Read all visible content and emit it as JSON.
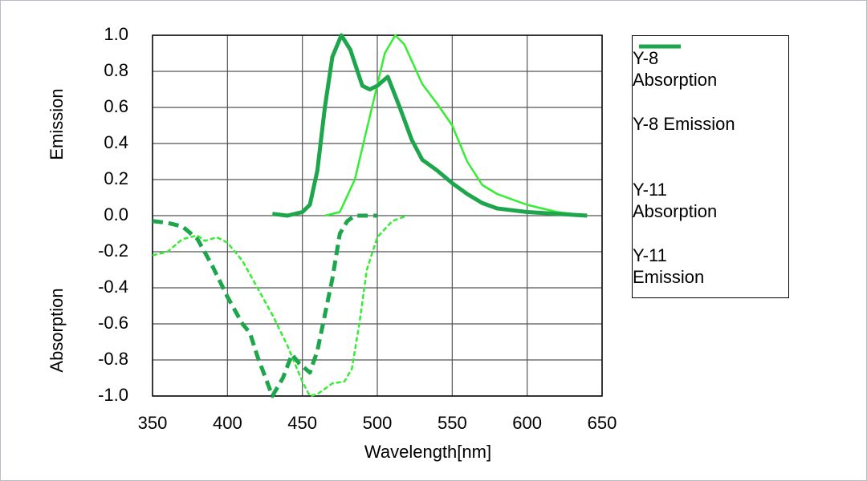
{
  "chart_data": {
    "type": "line",
    "x_label": "Wavelength[nm]",
    "y_label_upper": "Emission",
    "y_label_lower": "Absorption",
    "xlim": [
      350,
      650
    ],
    "xticks": [
      350,
      400,
      450,
      500,
      550,
      600,
      650
    ],
    "ylim": [
      -1,
      1
    ],
    "yticks": [
      {
        "value": -1,
        "label": "-1.0"
      },
      -0.8,
      -0.6,
      -0.4,
      -0.2,
      {
        "value": 0,
        "label": "0.0"
      },
      0.2,
      0.4,
      0.6,
      0.8,
      {
        "value": 1,
        "label": "1.0"
      }
    ],
    "grid": true,
    "legend": "right",
    "series": [
      {
        "name": "Y-8 Absorption",
        "color": "#33ee33",
        "linestyle": "dashed",
        "thick": false,
        "x": [
          350,
          360,
          370,
          380,
          385,
          393,
          400,
          410,
          420,
          430,
          440,
          450,
          455,
          460,
          470,
          478,
          483,
          488,
          493,
          500,
          510,
          520
        ],
        "values": [
          -0.22,
          -0.2,
          -0.13,
          -0.11,
          -0.14,
          -0.12,
          -0.15,
          -0.25,
          -0.4,
          -0.55,
          -0.72,
          -0.92,
          -1.0,
          -0.99,
          -0.93,
          -0.92,
          -0.85,
          -0.6,
          -0.3,
          -0.12,
          -0.03,
          0.0
        ]
      },
      {
        "name": "Y-8 Emission",
        "color": "#33ee33",
        "linestyle": "solid",
        "thick": false,
        "x": [
          465,
          475,
          485,
          495,
          505,
          512,
          518,
          530,
          540,
          550,
          560,
          570,
          580,
          600,
          620,
          640
        ],
        "values": [
          0.0,
          0.02,
          0.2,
          0.55,
          0.9,
          1.0,
          0.95,
          0.73,
          0.62,
          0.5,
          0.3,
          0.17,
          0.12,
          0.06,
          0.02,
          0.0
        ]
      },
      {
        "name": "Y-11 Absorption",
        "color": "#1ea64c",
        "linestyle": "dashed",
        "thick": true,
        "x": [
          350,
          360,
          370,
          380,
          390,
          400,
          410,
          415,
          420,
          430,
          437,
          443,
          448,
          455,
          460,
          470,
          475,
          480,
          485,
          500
        ],
        "values": [
          -0.03,
          -0.04,
          -0.06,
          -0.13,
          -0.28,
          -0.45,
          -0.6,
          -0.65,
          -0.78,
          -1.0,
          -0.9,
          -0.77,
          -0.82,
          -0.87,
          -0.75,
          -0.35,
          -0.1,
          -0.03,
          0.0,
          0.0
        ]
      },
      {
        "name": "Y-11 Emission",
        "color": "#1ea64c",
        "linestyle": "solid",
        "thick": true,
        "x": [
          430,
          440,
          450,
          455,
          460,
          465,
          470,
          476,
          482,
          490,
          495,
          500,
          507,
          515,
          523,
          530,
          540,
          550,
          560,
          570,
          580,
          600,
          620,
          640
        ],
        "values": [
          0.01,
          0.0,
          0.02,
          0.06,
          0.25,
          0.6,
          0.88,
          1.0,
          0.92,
          0.72,
          0.7,
          0.72,
          0.77,
          0.6,
          0.42,
          0.31,
          0.25,
          0.18,
          0.12,
          0.07,
          0.04,
          0.02,
          0.01,
          0.0
        ]
      }
    ]
  }
}
